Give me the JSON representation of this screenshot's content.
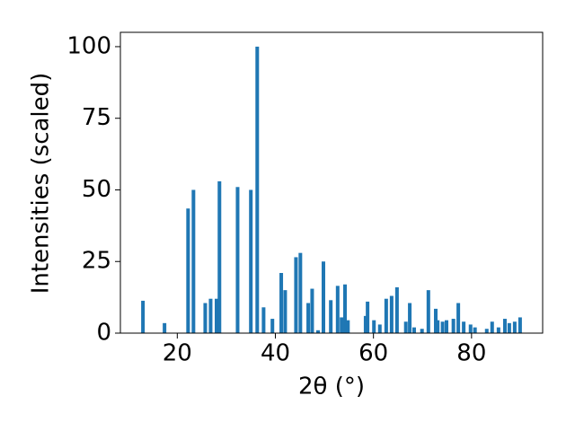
{
  "chart_data": {
    "type": "bar",
    "x_label": "2θ (°)",
    "y_label": "Intensities (scaled)",
    "x": [
      13.0,
      17.4,
      22.2,
      23.3,
      25.7,
      26.8,
      28.0,
      28.6,
      32.3,
      35.0,
      36.3,
      37.6,
      39.4,
      41.2,
      42.0,
      44.2,
      45.1,
      46.7,
      47.5,
      48.7,
      49.8,
      51.3,
      52.7,
      53.5,
      54.2,
      54.8,
      58.4,
      58.8,
      60.1,
      61.3,
      62.6,
      63.7,
      64.8,
      66.6,
      67.4,
      68.3,
      69.9,
      71.2,
      72.7,
      73.1,
      74.1,
      74.9,
      76.3,
      77.3,
      78.4,
      79.8,
      80.7,
      83.1,
      84.2,
      85.5,
      86.8,
      87.7,
      88.8,
      89.9
    ],
    "values": [
      11.3,
      3.5,
      43.5,
      50,
      10.5,
      12,
      12,
      53,
      51,
      50,
      100,
      9,
      5,
      21,
      15,
      26.5,
      28,
      10.5,
      15.5,
      1,
      25,
      11.5,
      16.5,
      5.5,
      17,
      4.5,
      6,
      11,
      4.5,
      3,
      12,
      13,
      16,
      4,
      10.5,
      2,
      1.5,
      15,
      8.5,
      4.5,
      4,
      4.5,
      5,
      10.5,
      4,
      3,
      2,
      1.5,
      4,
      2,
      5,
      3.5,
      4,
      5.5
    ],
    "color": "#1f77b4",
    "xlim": [
      8.4,
      94.5
    ],
    "ylim": [
      0,
      105
    ],
    "xticks": [
      20,
      40,
      60,
      80
    ],
    "yticks": [
      0,
      25,
      50,
      75,
      100
    ]
  }
}
